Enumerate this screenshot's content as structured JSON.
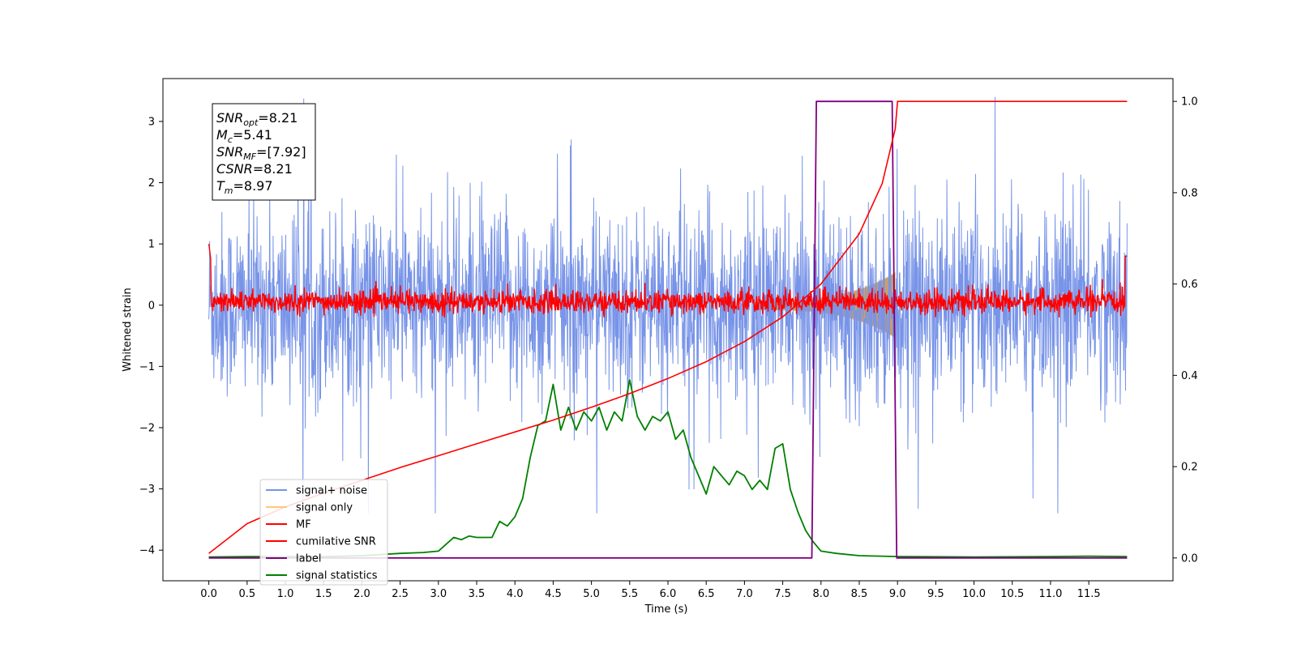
{
  "chart_data": {
    "type": "line",
    "xlabel": "Time (s)",
    "ylabel": "Whitened strain",
    "xlim": [
      -0.6,
      12.6
    ],
    "ylim": [
      -4.5,
      3.7
    ],
    "y2lim": [
      -0.05,
      1.05
    ],
    "x_ticks": [
      "0.0",
      "0.5",
      "1.0",
      "1.5",
      "2.0",
      "2.5",
      "3.0",
      "3.5",
      "4.0",
      "4.5",
      "5.0",
      "5.5",
      "6.0",
      "6.5",
      "7.0",
      "7.5",
      "8.0",
      "8.5",
      "9.0",
      "9.5",
      "10.0",
      "10.5",
      "11.0",
      "11.5"
    ],
    "y_ticks": [
      "3",
      "2",
      "1",
      "0",
      "−1",
      "−2",
      "−3",
      "−4"
    ],
    "y2_ticks": [
      "1.0",
      "0.8",
      "0.6",
      "0.4",
      "0.2",
      "0.0"
    ],
    "info_box": [
      {
        "symbol": "SNR",
        "sub": "opt",
        "value": "=8.21"
      },
      {
        "symbol": "M",
        "sub": "c",
        "value": "=5.41"
      },
      {
        "symbol": "SNR",
        "sub": "MF",
        "value": "=[7.92]"
      },
      {
        "symbol": "CSNR",
        "sub": "",
        "value": "=8.21"
      },
      {
        "symbol": "T",
        "sub": "m",
        "value": "=8.97"
      }
    ],
    "legend_position": "lower left",
    "series": [
      {
        "name": "signal+ noise",
        "color": "#7894e8",
        "axis": "left",
        "kind": "noise",
        "x_range": [
          0,
          12
        ],
        "mean": 0,
        "approx_std": 0.75,
        "approx_range": [
          -3.4,
          3.4
        ]
      },
      {
        "name": "signal only",
        "color": "#fdc87a",
        "axis": "left",
        "kind": "chirp",
        "x_range": [
          7.2,
          8.97
        ],
        "peak_amplitude": 0.45
      },
      {
        "name": "MF",
        "color": "#ff0000",
        "axis": "left",
        "kind": "noise",
        "x_range": [
          0,
          12
        ],
        "mean": 0.05,
        "approx_range": [
          -0.2,
          0.45
        ]
      },
      {
        "name": "cumilative SNR",
        "color": "#ff0000",
        "axis": "right",
        "x": [
          0.0,
          0.5,
          1.0,
          1.5,
          2.0,
          2.5,
          3.0,
          3.5,
          4.0,
          4.5,
          5.0,
          5.5,
          6.0,
          6.5,
          7.0,
          7.5,
          8.0,
          8.5,
          8.8,
          8.97,
          9.0,
          12.0
        ],
        "y": [
          0.01,
          0.075,
          0.112,
          0.142,
          0.17,
          0.198,
          0.224,
          0.25,
          0.276,
          0.302,
          0.33,
          0.36,
          0.393,
          0.43,
          0.474,
          0.528,
          0.6,
          0.71,
          0.82,
          0.94,
          1.0,
          1.0
        ]
      },
      {
        "name": "label",
        "color": "#800080",
        "axis": "right",
        "x": [
          0.0,
          7.88,
          7.94,
          8.93,
          8.99,
          12.0
        ],
        "y": [
          0.0,
          0.0,
          1.0,
          1.0,
          0.0,
          0.0
        ]
      },
      {
        "name": "signal statistics",
        "color": "#008000",
        "axis": "right",
        "x": [
          0.0,
          0.5,
          1.0,
          1.5,
          2.0,
          2.5,
          2.8,
          3.0,
          3.1,
          3.2,
          3.3,
          3.4,
          3.5,
          3.7,
          3.8,
          3.9,
          4.0,
          4.1,
          4.2,
          4.3,
          4.4,
          4.5,
          4.6,
          4.7,
          4.8,
          4.9,
          5.0,
          5.1,
          5.2,
          5.3,
          5.4,
          5.5,
          5.6,
          5.7,
          5.8,
          5.9,
          6.0,
          6.1,
          6.2,
          6.3,
          6.4,
          6.5,
          6.6,
          6.7,
          6.8,
          6.9,
          7.0,
          7.1,
          7.2,
          7.3,
          7.4,
          7.5,
          7.6,
          7.7,
          7.8,
          7.9,
          8.0,
          8.2,
          8.5,
          9.0,
          10.0,
          11.0,
          11.5,
          12.0
        ],
        "y": [
          0.002,
          0.003,
          0.003,
          0.003,
          0.005,
          0.01,
          0.012,
          0.015,
          0.03,
          0.045,
          0.04,
          0.048,
          0.045,
          0.045,
          0.08,
          0.07,
          0.09,
          0.13,
          0.22,
          0.29,
          0.3,
          0.38,
          0.28,
          0.33,
          0.28,
          0.32,
          0.3,
          0.33,
          0.28,
          0.32,
          0.3,
          0.39,
          0.31,
          0.28,
          0.31,
          0.3,
          0.32,
          0.26,
          0.28,
          0.22,
          0.18,
          0.14,
          0.2,
          0.18,
          0.16,
          0.19,
          0.18,
          0.15,
          0.17,
          0.15,
          0.24,
          0.25,
          0.15,
          0.1,
          0.06,
          0.035,
          0.015,
          0.01,
          0.005,
          0.003,
          0.002,
          0.003,
          0.004,
          0.003
        ]
      }
    ]
  }
}
